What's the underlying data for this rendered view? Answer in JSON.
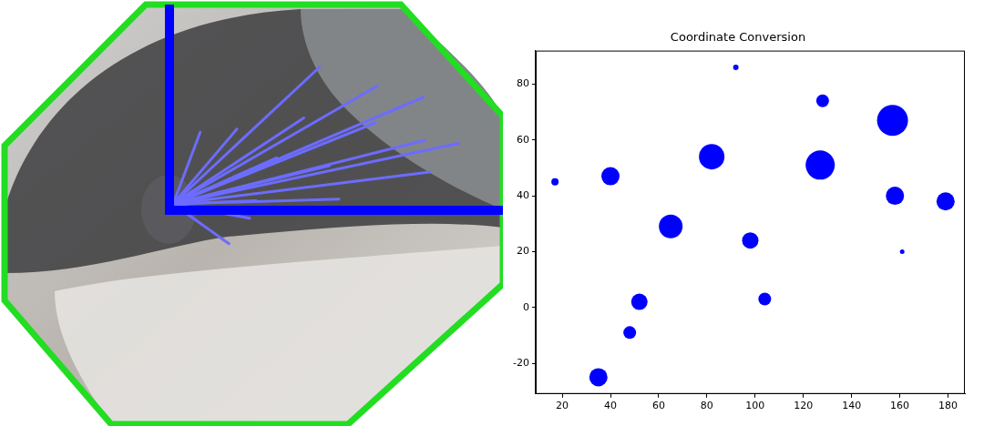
{
  "chart_data": {
    "type": "bubble",
    "title": "Coordinate Conversion",
    "x": [
      17,
      35,
      40,
      48,
      52,
      65,
      82,
      92,
      98,
      104,
      127,
      128,
      157,
      158,
      161,
      179
    ],
    "values": [
      45,
      -25,
      47,
      -9,
      2,
      29,
      54,
      86,
      24,
      3,
      51,
      74,
      67,
      40,
      20,
      38
    ],
    "sizes": [
      4,
      10,
      10,
      7,
      9,
      13,
      14,
      3,
      9,
      7,
      16,
      7,
      17,
      10,
      2.5,
      10
    ],
    "color": "#0000ff",
    "xlim": [
      9,
      187
    ],
    "xticks": [
      20,
      40,
      60,
      80,
      100,
      120,
      140,
      160,
      180
    ],
    "ylim": [
      -31,
      92
    ],
    "yticks": [
      -20,
      0,
      20,
      40,
      60,
      80
    ],
    "grid": false
  }
}
